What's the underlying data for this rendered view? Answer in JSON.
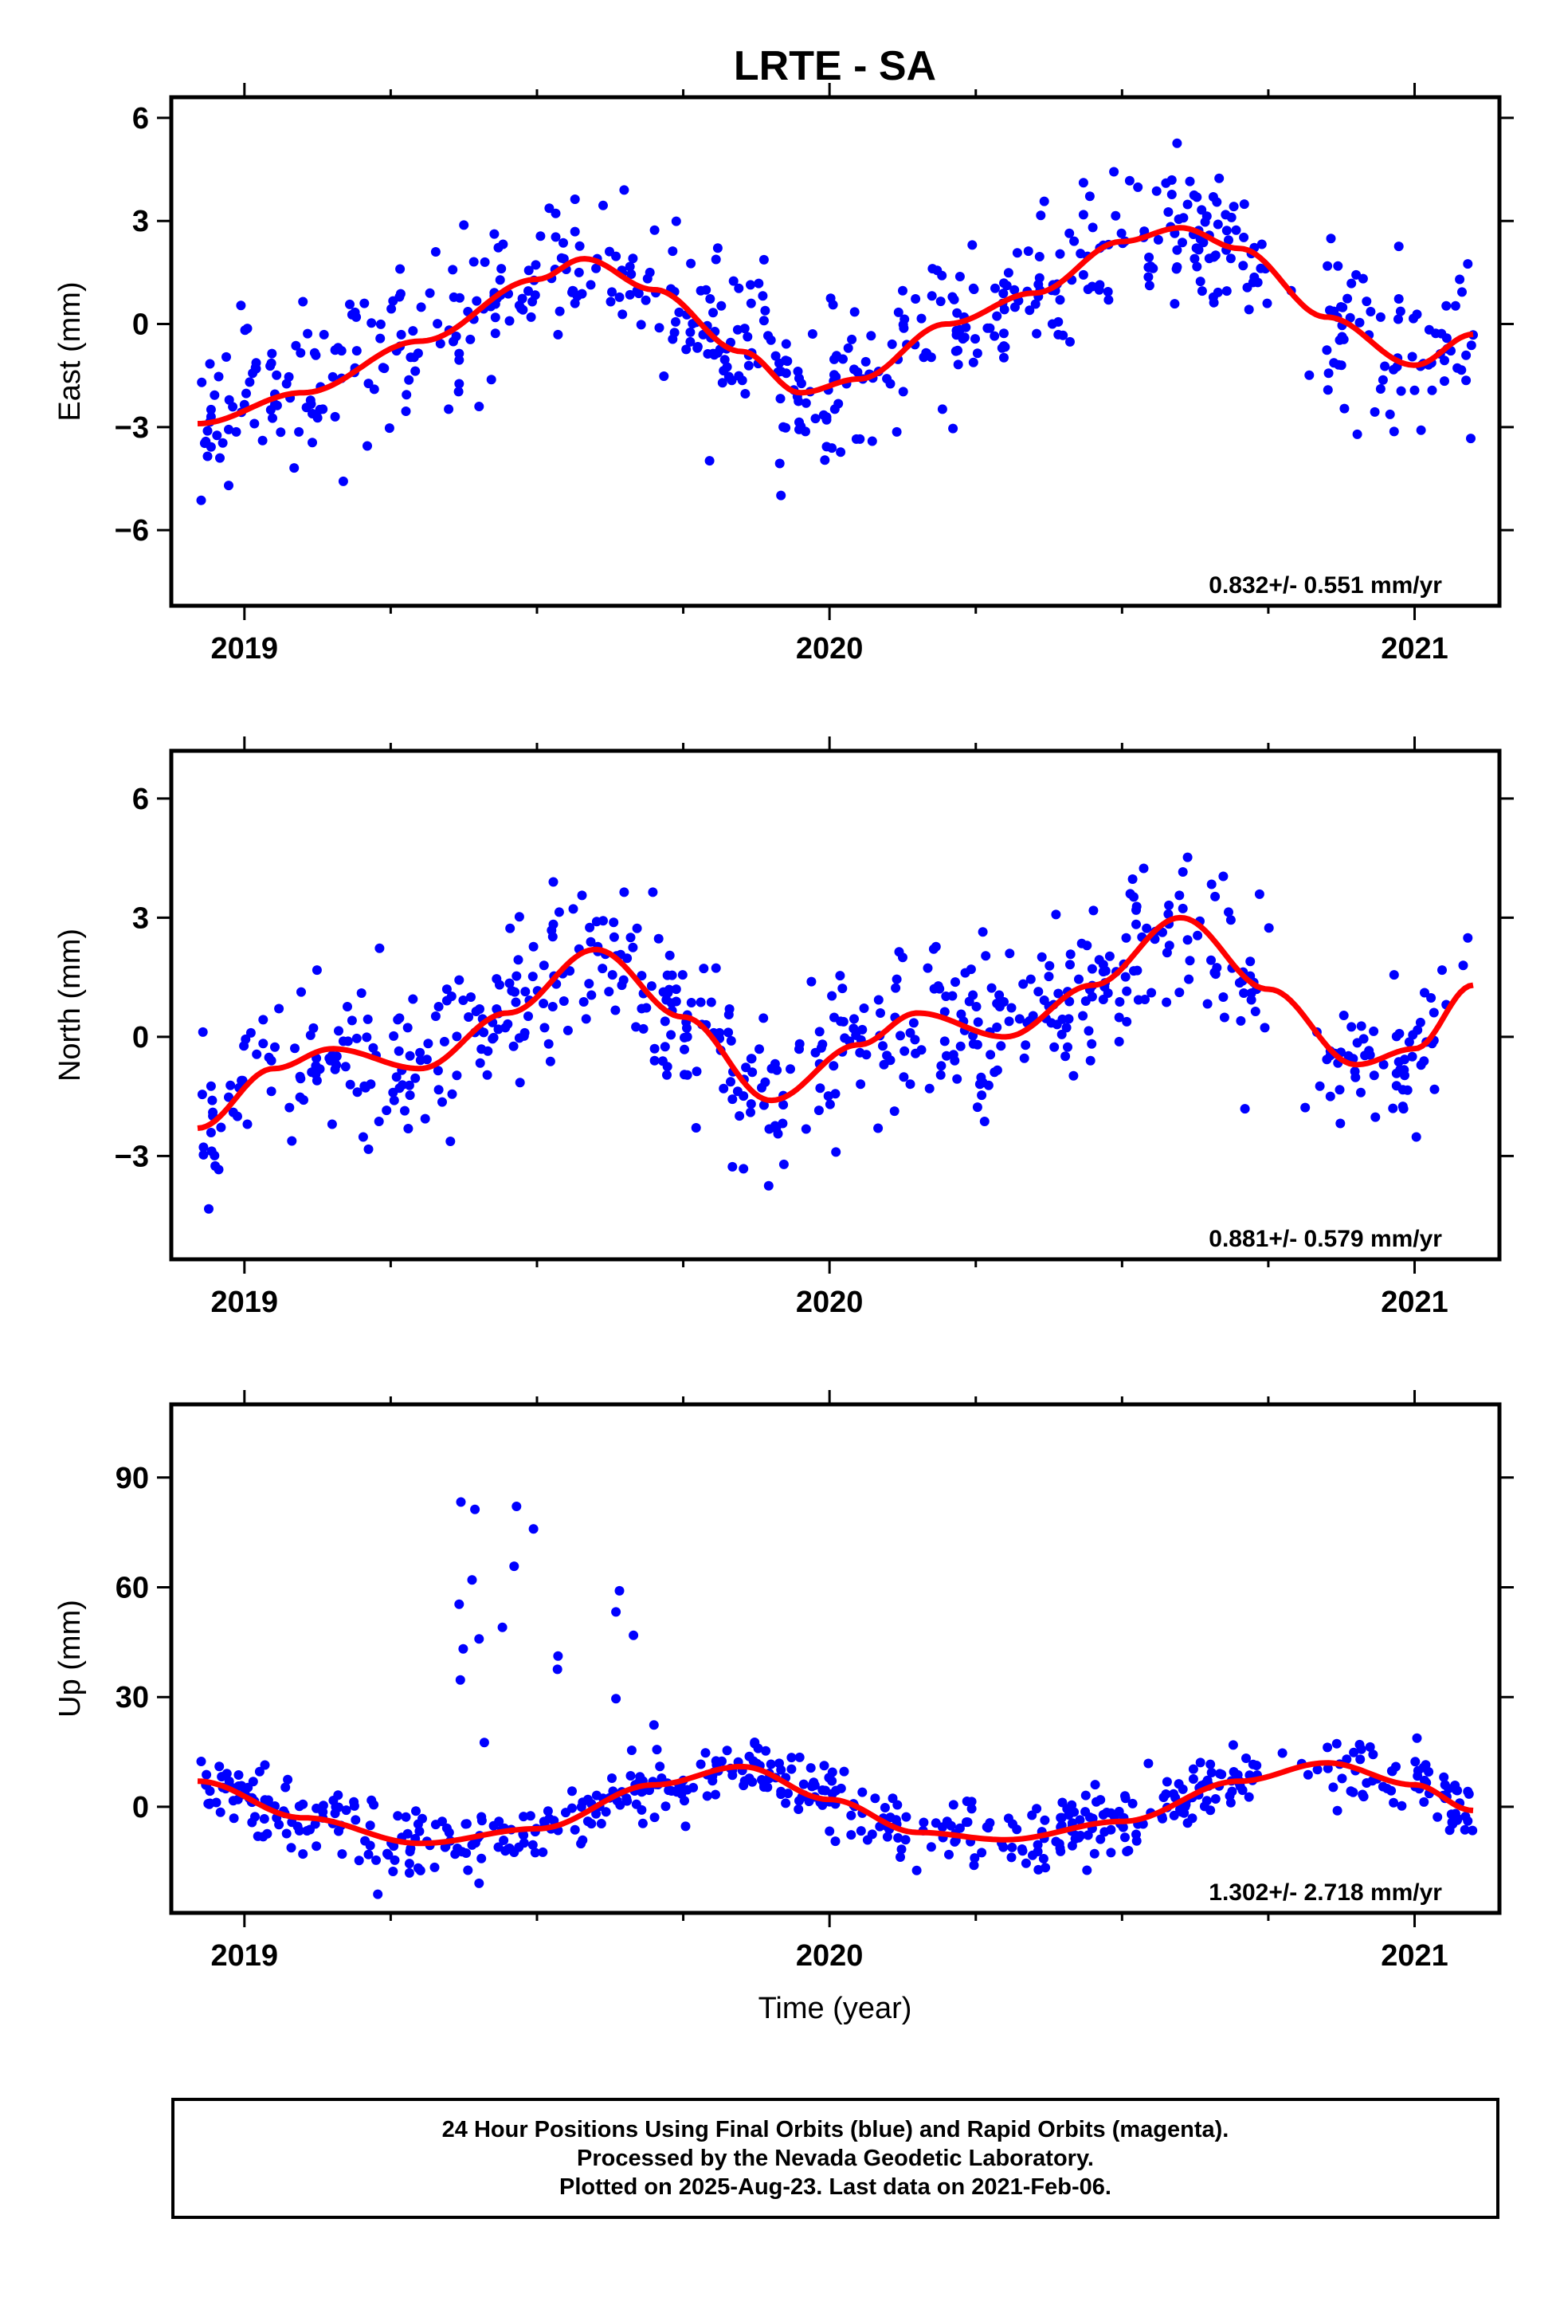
{
  "figure": {
    "title": "LRTE - SA",
    "xlabel": "Time (year)",
    "footer_lines": [
      "24 Hour Positions Using Final Orbits (blue) and Rapid Orbits (magenta).",
      "Processed by the Nevada Geodetic Laboratory.",
      "Plotted on 2025-Aug-23. Last data on 2021-Feb-06."
    ]
  },
  "colors": {
    "points": "#0000ff",
    "fit": "#ff0000",
    "frame": "#000000"
  },
  "chart_data": [
    {
      "type": "scatter",
      "name": "east",
      "ylabel": "East (mm)",
      "rate_annotation": "0.832+/- 0.551 mm/yr",
      "xlim": [
        2018.875,
        2021.145
      ],
      "ylim": [
        -8.2,
        6.6
      ],
      "xticks": [
        2019,
        2020,
        2021
      ],
      "yticks": [
        -6,
        -3,
        0,
        3,
        6
      ],
      "series": [
        {
          "role": "observations",
          "color": "#0000ff",
          "x": [],
          "y": []
        },
        {
          "role": "fit",
          "color": "#ff0000",
          "x": [
            2018.92,
            2019.1,
            2019.3,
            2019.5,
            2019.58,
            2019.7,
            2019.85,
            2019.95,
            2020.05,
            2020.2,
            2020.35,
            2020.5,
            2020.6,
            2020.7,
            2020.85,
            2021.0,
            2021.1
          ],
          "y": [
            -2.9,
            -2.0,
            -0.5,
            1.3,
            1.9,
            1.0,
            -0.8,
            -2.0,
            -1.6,
            0.0,
            0.9,
            2.4,
            2.8,
            2.2,
            0.2,
            -1.2,
            -0.3
          ]
        }
      ]
    },
    {
      "type": "scatter",
      "name": "north",
      "ylabel": "North (mm)",
      "rate_annotation": "0.881+/- 0.579 mm/yr",
      "xlim": [
        2018.875,
        2021.145
      ],
      "ylim": [
        -5.6,
        7.2
      ],
      "xticks": [
        2019,
        2020,
        2021
      ],
      "yticks": [
        -3,
        0,
        3,
        6
      ],
      "series": [
        {
          "role": "observations",
          "color": "#0000ff",
          "x": [],
          "y": []
        },
        {
          "role": "fit",
          "color": "#ff0000",
          "x": [
            2018.92,
            2019.05,
            2019.15,
            2019.3,
            2019.45,
            2019.6,
            2019.75,
            2019.9,
            2020.05,
            2020.15,
            2020.3,
            2020.45,
            2020.6,
            2020.75,
            2020.9,
            2021.0,
            2021.1
          ],
          "y": [
            -2.3,
            -0.8,
            -0.3,
            -0.8,
            0.6,
            2.2,
            0.5,
            -1.6,
            -0.2,
            0.6,
            0.0,
            1.3,
            3.0,
            1.2,
            -0.7,
            -0.3,
            1.3
          ]
        }
      ]
    },
    {
      "type": "scatter",
      "name": "up",
      "ylabel": "Up (mm)",
      "rate_annotation": "1.302+/- 2.718 mm/yr",
      "xlim": [
        2018.875,
        2021.145
      ],
      "ylim": [
        -29,
        110
      ],
      "xticks": [
        2019,
        2020,
        2021
      ],
      "yticks": [
        0,
        30,
        60,
        90
      ],
      "series": [
        {
          "role": "observations",
          "color": "#0000ff",
          "x": [],
          "y": []
        },
        {
          "role": "fit",
          "color": "#ff0000",
          "x": [
            2018.92,
            2019.1,
            2019.3,
            2019.5,
            2019.7,
            2019.85,
            2020.0,
            2020.15,
            2020.3,
            2020.5,
            2020.7,
            2020.85,
            2021.0,
            2021.1
          ],
          "y": [
            7.0,
            -3.0,
            -10.0,
            -6.0,
            6.0,
            11.0,
            2.0,
            -7.0,
            -9.0,
            -4.0,
            7.0,
            12.0,
            6.0,
            -1.0
          ]
        }
      ]
    }
  ]
}
